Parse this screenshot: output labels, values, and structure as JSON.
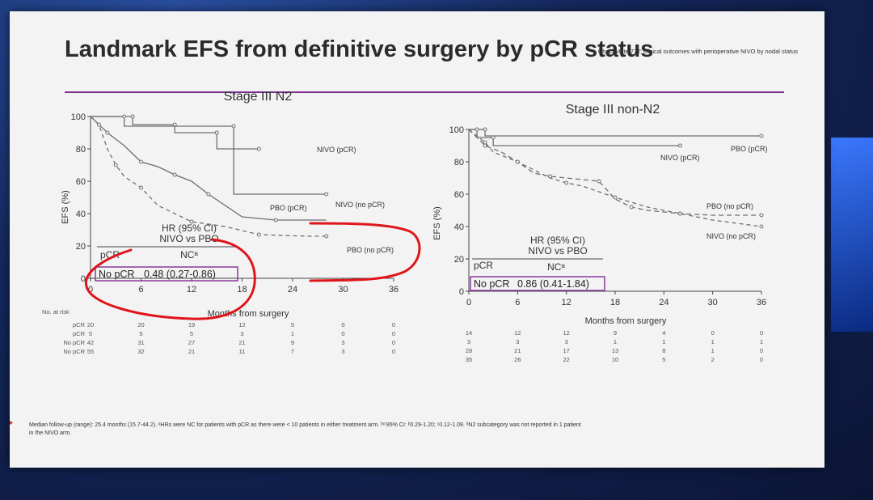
{
  "slide": {
    "header_note": "CheckMate 77T: clinical outcomes with perioperative NIVO by nodal status",
    "title": "Landmark EFS from definitive surgery by pCR status",
    "footnote_line1": "Median follow-up (range): 25.4 months (15.7-44.2). ᵃHRs were NC for patients with pCR as there were < 10 patients in either treatment arm. ᵇʳᶜ95% CI: ᵇ0.29-1.20; ᶜ0.12-1.09. ᵈN2 subcategory was not reported in 1 patient",
    "footnote_line2": "in the NIVO arm."
  },
  "chart_data": [
    {
      "type": "line",
      "title": "Stage III N2",
      "xlabel": "Months from surgery",
      "ylabel": "EFS (%)",
      "xticks": [
        "0",
        "6",
        "12",
        "18",
        "24",
        "30",
        "36"
      ],
      "yticks": [
        "0",
        "20",
        "40",
        "60",
        "80",
        "100"
      ],
      "xlim": [
        0,
        36
      ],
      "ylim": [
        0,
        100
      ],
      "series": [
        {
          "name": "NIVO (pCR)",
          "x": [
            0,
            5,
            5,
            10,
            10,
            15,
            15,
            20
          ],
          "y": [
            100,
            100,
            95,
            95,
            90,
            90,
            80,
            80
          ]
        },
        {
          "name": "NIVO (no pCR)",
          "x": [
            0,
            2,
            4,
            6,
            8,
            10,
            12,
            14,
            18,
            22,
            28
          ],
          "y": [
            100,
            90,
            82,
            72,
            69,
            64,
            60,
            52,
            38,
            36,
            36
          ]
        },
        {
          "name": "PBO (pCR)",
          "x": [
            0,
            4,
            4,
            17,
            17,
            28
          ],
          "y": [
            100,
            100,
            94,
            94,
            52,
            52
          ]
        },
        {
          "name": "PBO (no pCR)",
          "x": [
            0,
            1,
            2,
            3,
            4,
            6,
            8,
            12,
            16,
            20,
            26,
            28
          ],
          "y": [
            100,
            95,
            80,
            70,
            63,
            56,
            45,
            35,
            32,
            27,
            26,
            26
          ]
        }
      ],
      "hr_header": "HR (95% CI)",
      "hr_subheader": "NIVO vs PBO",
      "hr_rows": [
        {
          "label": "pCR",
          "value": "NCᵃ"
        },
        {
          "label": "No pCR",
          "value": "0.48 (0.27-0.86)"
        }
      ],
      "risk_table": {
        "header": "No. at risk",
        "rows": [
          {
            "label": "pCR",
            "values": [
              "20",
              "20",
              "19",
              "12",
              "5",
              "0",
              "0"
            ]
          },
          {
            "label": "pCR",
            "values": [
              "5",
              "5",
              "5",
              "3",
              "1",
              "0",
              "0"
            ]
          },
          {
            "label": "No pCR",
            "values": [
              "42",
              "31",
              "27",
              "21",
              "9",
              "3",
              "0"
            ]
          },
          {
            "label": "No pCR",
            "values": [
              "55",
              "32",
              "21",
              "11",
              "7",
              "3",
              "0"
            ]
          }
        ]
      }
    },
    {
      "type": "line",
      "title": "Stage III non-N2",
      "xlabel": "Months from surgery",
      "ylabel": "EFS (%)",
      "xticks": [
        "0",
        "6",
        "12",
        "18",
        "24",
        "30",
        "36"
      ],
      "yticks": [
        "0",
        "20",
        "40",
        "60",
        "80",
        "100"
      ],
      "xlim": [
        0,
        36
      ],
      "ylim": [
        0,
        100
      ],
      "series": [
        {
          "name": "PBO (pCR)",
          "x": [
            0,
            2,
            2,
            36
          ],
          "y": [
            100,
            100,
            96,
            96
          ]
        },
        {
          "name": "NIVO (pCR)",
          "x": [
            0,
            1,
            1,
            3,
            3,
            26
          ],
          "y": [
            100,
            100,
            95,
            95,
            90,
            90
          ]
        },
        {
          "name": "PBO (no pCR)",
          "x": [
            0,
            2,
            4,
            6,
            8,
            10,
            12,
            16,
            18,
            20,
            22,
            26,
            30,
            36
          ],
          "y": [
            100,
            90,
            86,
            80,
            73,
            71,
            70,
            68,
            57,
            52,
            50,
            48,
            47,
            47
          ]
        },
        {
          "name": "NIVO (no pCR)",
          "x": [
            0,
            2,
            3,
            6,
            10,
            12,
            14,
            18,
            22,
            26,
            30,
            36
          ],
          "y": [
            100,
            92,
            86,
            80,
            70,
            67,
            65,
            58,
            52,
            48,
            44,
            40
          ]
        }
      ],
      "hr_header": "HR (95% CI)",
      "hr_subheader": "NIVO vs PBO",
      "hr_rows": [
        {
          "label": "pCR",
          "value": "NCᵃ"
        },
        {
          "label": "No pCR",
          "value": "0.86 (0.41-1.84)"
        }
      ],
      "risk_table": {
        "rows": [
          {
            "values": [
              "14",
              "12",
              "12",
              "9",
              "4",
              "0",
              "0"
            ]
          },
          {
            "values": [
              "3",
              "3",
              "3",
              "1",
              "1",
              "1",
              "1"
            ]
          },
          {
            "values": [
              "28",
              "21",
              "17",
              "13",
              "8",
              "1",
              "0"
            ]
          },
          {
            "values": [
              "35",
              "26",
              "22",
              "10",
              "5",
              "2",
              "0"
            ]
          }
        ]
      }
    }
  ],
  "colors": {
    "accent_line": "#7a2b8c",
    "box_border": "#8a3a9a",
    "annotation_red": "#e0151b",
    "curve": "#777777"
  }
}
